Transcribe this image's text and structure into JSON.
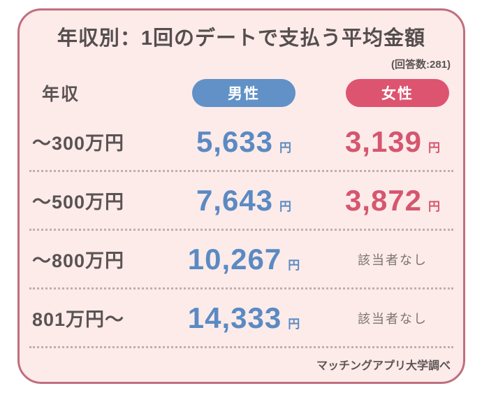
{
  "colors": {
    "card_background": "#fcebe9",
    "card_border": "#c06e7e",
    "male_accent": "#5b8ac3",
    "male_pill": "#6191c7",
    "female_accent": "#d5566f",
    "female_pill": "#dd5470",
    "text_dark": "#554e4e",
    "muted_gray": "#7c7272",
    "dotted_separator": "#bcb0b0"
  },
  "header": {
    "title": "年収別：1回のデートで支払う平均金額",
    "response_count": "(回答数:281)"
  },
  "table": {
    "income_header": "年収",
    "columns": {
      "male": "男性",
      "female": "女性"
    },
    "yen_suffix": "円",
    "na_label": "該当者なし",
    "rows": [
      {
        "income": "〜300万円",
        "male": "5,633",
        "female": "3,139",
        "female_na": false
      },
      {
        "income": "〜500万円",
        "male": "7,643",
        "female": "3,872",
        "female_na": false
      },
      {
        "income": "〜800万円",
        "male": "10,267",
        "female": "該当者なし",
        "female_na": true
      },
      {
        "income": "801万円〜",
        "male": "14,333",
        "female": "該当者なし",
        "female_na": true
      }
    ]
  },
  "footer": {
    "source": "マッチングアプリ大学調べ"
  },
  "chart_data": {
    "type": "table",
    "title": "年収別：1回のデートで支払う平均金額",
    "subtitle": "(回答数:281)",
    "source": "マッチングアプリ大学調べ",
    "categories": [
      "〜300万円",
      "〜500万円",
      "〜800万円",
      "801万円〜"
    ],
    "series": [
      {
        "name": "男性",
        "unit": "円",
        "values": [
          5633,
          7643,
          10267,
          14333
        ]
      },
      {
        "name": "女性",
        "unit": "円",
        "values": [
          3139,
          3872,
          null,
          null
        ],
        "missing_label": "該当者なし"
      }
    ]
  }
}
